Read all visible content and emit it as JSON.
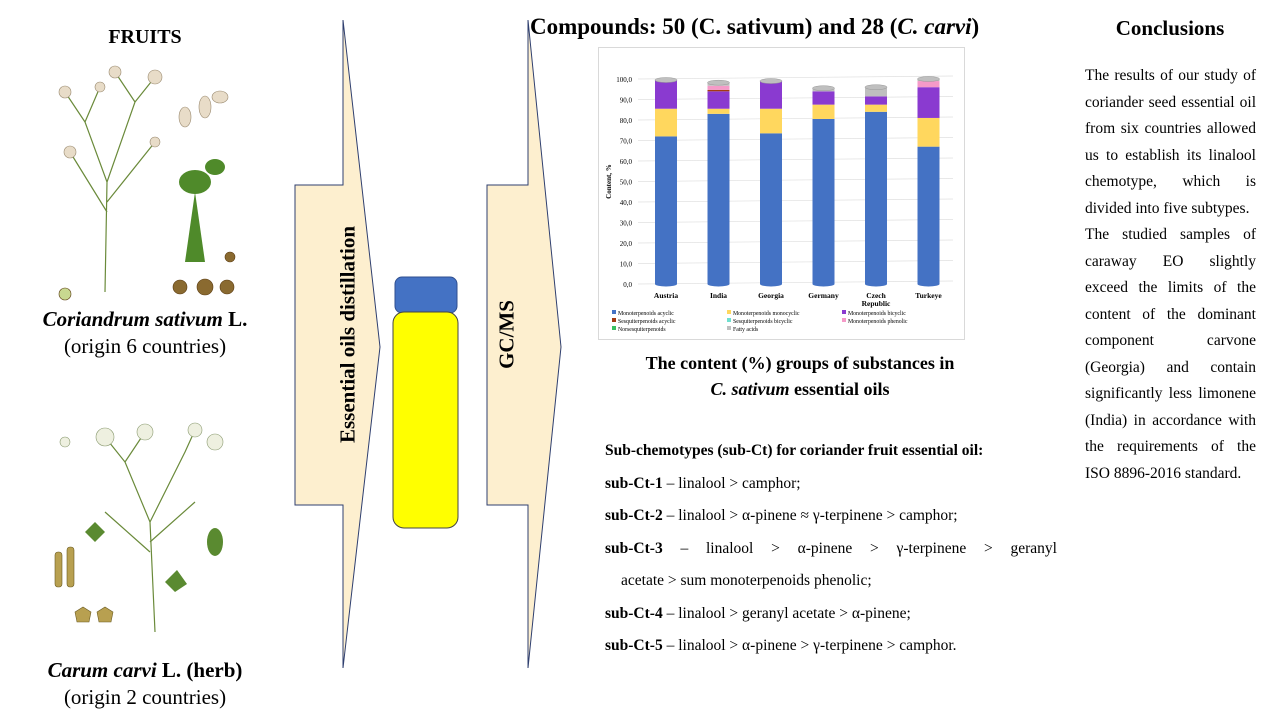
{
  "left": {
    "fruits_title": "FRUITS",
    "coriander": {
      "name_italic": "Coriandrum sativum",
      "name_suffix": " L.",
      "origin": "(origin 6 countries)"
    },
    "caraway": {
      "name_italic": "Carum carvi",
      "name_suffix": " L. (herb)",
      "origin": "(origin 2 countries)"
    }
  },
  "process": {
    "step1": "Essential oils distillation",
    "step2": "GC/MS",
    "colors": {
      "arrow_fill": "#fdefcf",
      "arrow_stroke": "#2f3f6f",
      "vial_cap": "#4472c4",
      "vial_body": "#ffff00"
    }
  },
  "results": {
    "title_prefix": "Compounds: 50 (C. sativum) and 28 (",
    "title_italic": "C. carvi",
    "title_suffix": ")",
    "caption_line1": "The content (%) groups of substances in",
    "caption_italic": "C. sativum",
    "caption_suffix": " essential oils"
  },
  "chart_data": {
    "type": "bar",
    "stacked": true,
    "ylabel": "Content, %",
    "ylim": [
      0,
      100
    ],
    "yticks": [
      "0,0",
      "10,0",
      "20,0",
      "30,0",
      "40,0",
      "50,0",
      "60,0",
      "70,0",
      "80,0",
      "90,0",
      "100,0"
    ],
    "categories": [
      "Austria",
      "India",
      "Georgia",
      "Germany",
      "Czech Republic",
      "Turkeye"
    ],
    "grid": true,
    "legend_position": "bottom",
    "series": [
      {
        "name": "Monoterpenoids acyclic",
        "color": "#4472c4",
        "values": [
          72,
          83,
          73.5,
          80.5,
          84,
          67
        ]
      },
      {
        "name": "Monoterpenoids monocyclic",
        "color": "#ffd75e",
        "values": [
          13.5,
          2.5,
          12,
          7,
          3.5,
          14
        ]
      },
      {
        "name": "Monoterpenoids bicyclic",
        "color": "#8a3ad0",
        "values": [
          14,
          8.5,
          13.5,
          6.5,
          4,
          15
        ]
      },
      {
        "name": "Sesquiterpenoids acyclic",
        "color": "#a33a12",
        "values": [
          0,
          0.7,
          0,
          0,
          0,
          0
        ]
      },
      {
        "name": "Sesquiterpenoids bicyclic",
        "color": "#70e0d0",
        "values": [
          0,
          0,
          0,
          0,
          0,
          0
        ]
      },
      {
        "name": "Monoterpenoids phenolic",
        "color": "#f59ac8",
        "values": [
          0,
          2,
          0,
          0,
          0,
          3
        ]
      },
      {
        "name": "Norsesquiterpenoids",
        "color": "#38c060",
        "values": [
          0,
          0,
          0,
          0,
          0,
          0
        ]
      },
      {
        "name": "Fatty acids",
        "color": "#bfbfbf",
        "values": [
          0,
          1.5,
          0,
          1.5,
          4.5,
          1
        ]
      }
    ]
  },
  "subchemotypes": {
    "title": "Sub-chemotypes (sub-Ct) for coriander fruit essential oil:",
    "items": [
      {
        "label": "sub-Ct-1",
        "text": " – linalool > camphor;"
      },
      {
        "label": "sub-Ct-2",
        "text": " – linalool > α-pinene ≈ γ-terpinene > camphor;"
      },
      {
        "label": "sub-Ct-3",
        "text": " – linalool > α-pinene > γ-terpinene > geranyl",
        "cont": "acetate > sum monoterpenoids phenolic;"
      },
      {
        "label": "sub-Ct-4",
        "text": " – linalool > geranyl acetate > α-pinene;"
      },
      {
        "label": "sub-Ct-5",
        "text": " – linalool > α-pinene > γ-terpinene > camphor."
      }
    ]
  },
  "conclusions": {
    "title": "Conclusions",
    "paragraphs": [
      "The results of our study of coriander seed essential oil from six countries allowed us to establish its linalool chemotype, which is divided into five subtypes.",
      "The studied samples of caraway EO slightly exceed the limits of the content of the dominant component carvone (Georgia) and contain significantly less limonene (India) in accordance with the requirements of the ISO 8896-2016 standard."
    ]
  }
}
